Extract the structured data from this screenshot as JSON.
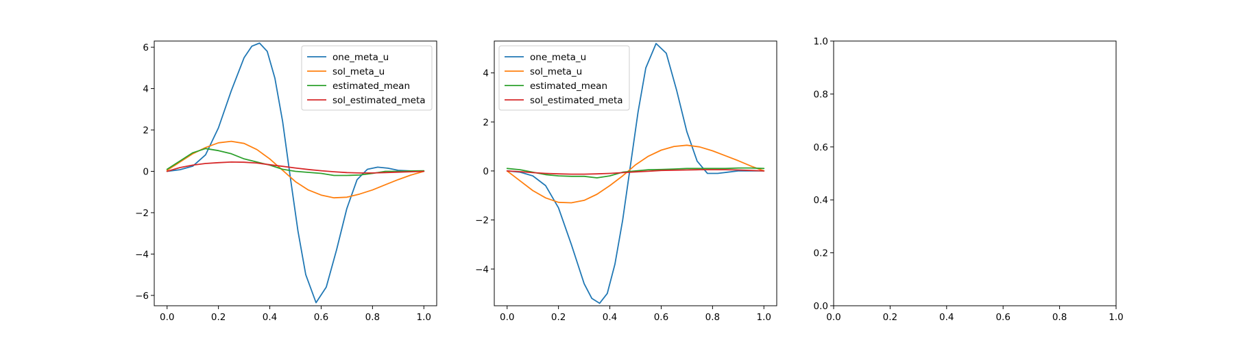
{
  "chart_data": [
    {
      "type": "line",
      "title": "",
      "xlabel": "",
      "ylabel": "",
      "xlim": [
        -0.05,
        1.05
      ],
      "ylim": [
        -6.5,
        6.3
      ],
      "xticks": [
        0.0,
        0.2,
        0.4,
        0.6,
        0.8,
        1.0
      ],
      "xtick_labels": [
        "0.0",
        "0.2",
        "0.4",
        "0.6",
        "0.8",
        "1.0"
      ],
      "yticks": [
        -6,
        -4,
        -2,
        0,
        2,
        4,
        6
      ],
      "ytick_labels": [
        "−6",
        "−4",
        "−2",
        "0",
        "2",
        "4",
        "6"
      ],
      "legend": {
        "placement": "top-right"
      },
      "grid": false,
      "series": [
        {
          "name": "one_meta_u",
          "color": "#1f77b4",
          "x": [
            0,
            0.05,
            0.1,
            0.15,
            0.2,
            0.25,
            0.3,
            0.33,
            0.36,
            0.39,
            0.42,
            0.45,
            0.48,
            0.51,
            0.54,
            0.58,
            0.62,
            0.66,
            0.7,
            0.74,
            0.78,
            0.82,
            0.86,
            0.9,
            0.95,
            1.0
          ],
          "y": [
            0,
            0.08,
            0.25,
            0.8,
            2.1,
            3.9,
            5.5,
            6.05,
            6.2,
            5.8,
            4.5,
            2.4,
            -0.3,
            -2.9,
            -5.0,
            -6.35,
            -5.6,
            -3.8,
            -1.8,
            -0.4,
            0.1,
            0.2,
            0.15,
            0.05,
            0.02,
            0.0
          ]
        },
        {
          "name": "sol_meta_u",
          "color": "#ff7f0e",
          "x": [
            0,
            0.05,
            0.1,
            0.15,
            0.2,
            0.25,
            0.3,
            0.35,
            0.4,
            0.45,
            0.5,
            0.55,
            0.6,
            0.65,
            0.7,
            0.75,
            0.8,
            0.85,
            0.9,
            0.95,
            1.0
          ],
          "y": [
            0.05,
            0.45,
            0.85,
            1.15,
            1.38,
            1.45,
            1.35,
            1.05,
            0.6,
            0.05,
            -0.5,
            -0.9,
            -1.15,
            -1.28,
            -1.25,
            -1.1,
            -0.9,
            -0.65,
            -0.4,
            -0.18,
            0.0
          ]
        },
        {
          "name": "estimated_mean",
          "color": "#2ca02c",
          "x": [
            0,
            0.05,
            0.1,
            0.15,
            0.2,
            0.25,
            0.3,
            0.35,
            0.4,
            0.45,
            0.5,
            0.55,
            0.6,
            0.65,
            0.7,
            0.75,
            0.8,
            0.85,
            0.9,
            0.95,
            1.0
          ],
          "y": [
            0.1,
            0.5,
            0.9,
            1.1,
            1.0,
            0.85,
            0.6,
            0.45,
            0.3,
            0.1,
            0.0,
            -0.05,
            -0.1,
            -0.2,
            -0.2,
            -0.18,
            -0.1,
            0.0,
            0.0,
            0.02,
            0.03
          ]
        },
        {
          "name": "sol_estimated_meta",
          "color": "#d62728",
          "x": [
            0,
            0.05,
            0.1,
            0.15,
            0.2,
            0.25,
            0.3,
            0.35,
            0.4,
            0.45,
            0.5,
            0.55,
            0.6,
            0.65,
            0.7,
            0.75,
            0.8,
            0.85,
            0.9,
            0.95,
            1.0
          ],
          "y": [
            0.0,
            0.18,
            0.3,
            0.38,
            0.42,
            0.45,
            0.44,
            0.4,
            0.32,
            0.24,
            0.16,
            0.09,
            0.03,
            -0.02,
            -0.06,
            -0.08,
            -0.08,
            -0.06,
            -0.04,
            -0.02,
            0.0
          ]
        }
      ]
    },
    {
      "type": "line",
      "title": "",
      "xlabel": "",
      "ylabel": "",
      "xlim": [
        -0.05,
        1.05
      ],
      "ylim": [
        -5.5,
        5.3
      ],
      "xticks": [
        0.0,
        0.2,
        0.4,
        0.6,
        0.8,
        1.0
      ],
      "xtick_labels": [
        "0.0",
        "0.2",
        "0.4",
        "0.6",
        "0.8",
        "1.0"
      ],
      "yticks": [
        -4,
        -2,
        0,
        2,
        4
      ],
      "ytick_labels": [
        "−4",
        "−2",
        "0",
        "2",
        "4"
      ],
      "legend": {
        "placement": "top-left"
      },
      "grid": false,
      "series": [
        {
          "name": "one_meta_u",
          "color": "#1f77b4",
          "x": [
            0,
            0.05,
            0.1,
            0.15,
            0.2,
            0.25,
            0.3,
            0.33,
            0.36,
            0.39,
            0.42,
            0.45,
            0.48,
            0.51,
            0.54,
            0.58,
            0.62,
            0.66,
            0.7,
            0.74,
            0.78,
            0.82,
            0.86,
            0.9,
            0.95,
            1.0
          ],
          "y": [
            0,
            -0.05,
            -0.2,
            -0.6,
            -1.5,
            -3.0,
            -4.6,
            -5.2,
            -5.4,
            -5.0,
            -3.8,
            -2.0,
            0.2,
            2.4,
            4.2,
            5.2,
            4.8,
            3.3,
            1.6,
            0.4,
            -0.1,
            -0.1,
            -0.05,
            0.0,
            0.0,
            0.0
          ]
        },
        {
          "name": "sol_meta_u",
          "color": "#ff7f0e",
          "x": [
            0,
            0.05,
            0.1,
            0.15,
            0.2,
            0.25,
            0.3,
            0.35,
            0.4,
            0.45,
            0.5,
            0.55,
            0.6,
            0.65,
            0.7,
            0.75,
            0.8,
            0.85,
            0.9,
            0.95,
            1.0
          ],
          "y": [
            0.0,
            -0.4,
            -0.8,
            -1.1,
            -1.28,
            -1.3,
            -1.2,
            -0.95,
            -0.6,
            -0.2,
            0.25,
            0.6,
            0.85,
            1.0,
            1.05,
            0.98,
            0.82,
            0.62,
            0.42,
            0.2,
            0.0
          ]
        },
        {
          "name": "estimated_mean",
          "color": "#2ca02c",
          "x": [
            0,
            0.05,
            0.1,
            0.15,
            0.2,
            0.25,
            0.3,
            0.35,
            0.4,
            0.45,
            0.5,
            0.55,
            0.6,
            0.65,
            0.7,
            0.75,
            0.8,
            0.85,
            0.9,
            0.95,
            1.0
          ],
          "y": [
            0.1,
            0.05,
            -0.05,
            -0.15,
            -0.2,
            -0.22,
            -0.22,
            -0.28,
            -0.2,
            -0.05,
            0.0,
            0.05,
            0.06,
            0.08,
            0.1,
            0.1,
            0.1,
            0.1,
            0.12,
            0.12,
            0.1
          ]
        },
        {
          "name": "sol_estimated_meta",
          "color": "#d62728",
          "x": [
            0,
            0.05,
            0.1,
            0.15,
            0.2,
            0.25,
            0.3,
            0.35,
            0.4,
            0.45,
            0.5,
            0.55,
            0.6,
            0.65,
            0.7,
            0.75,
            0.8,
            0.85,
            0.9,
            0.95,
            1.0
          ],
          "y": [
            0.0,
            -0.03,
            -0.07,
            -0.1,
            -0.12,
            -0.13,
            -0.13,
            -0.12,
            -0.1,
            -0.07,
            -0.04,
            -0.01,
            0.02,
            0.03,
            0.04,
            0.05,
            0.05,
            0.05,
            0.04,
            0.02,
            0.0
          ]
        }
      ]
    },
    {
      "type": "line",
      "title": "",
      "xlabel": "",
      "ylabel": "",
      "xlim": [
        0,
        1
      ],
      "ylim": [
        0,
        1
      ],
      "xticks": [
        0.0,
        0.2,
        0.4,
        0.6,
        0.8,
        1.0
      ],
      "xtick_labels": [
        "0.0",
        "0.2",
        "0.4",
        "0.6",
        "0.8",
        "1.0"
      ],
      "yticks": [
        0.0,
        0.2,
        0.4,
        0.6,
        0.8,
        1.0
      ],
      "ytick_labels": [
        "0.0",
        "0.2",
        "0.4",
        "0.6",
        "0.8",
        "1.0"
      ],
      "grid": false,
      "series": []
    }
  ]
}
